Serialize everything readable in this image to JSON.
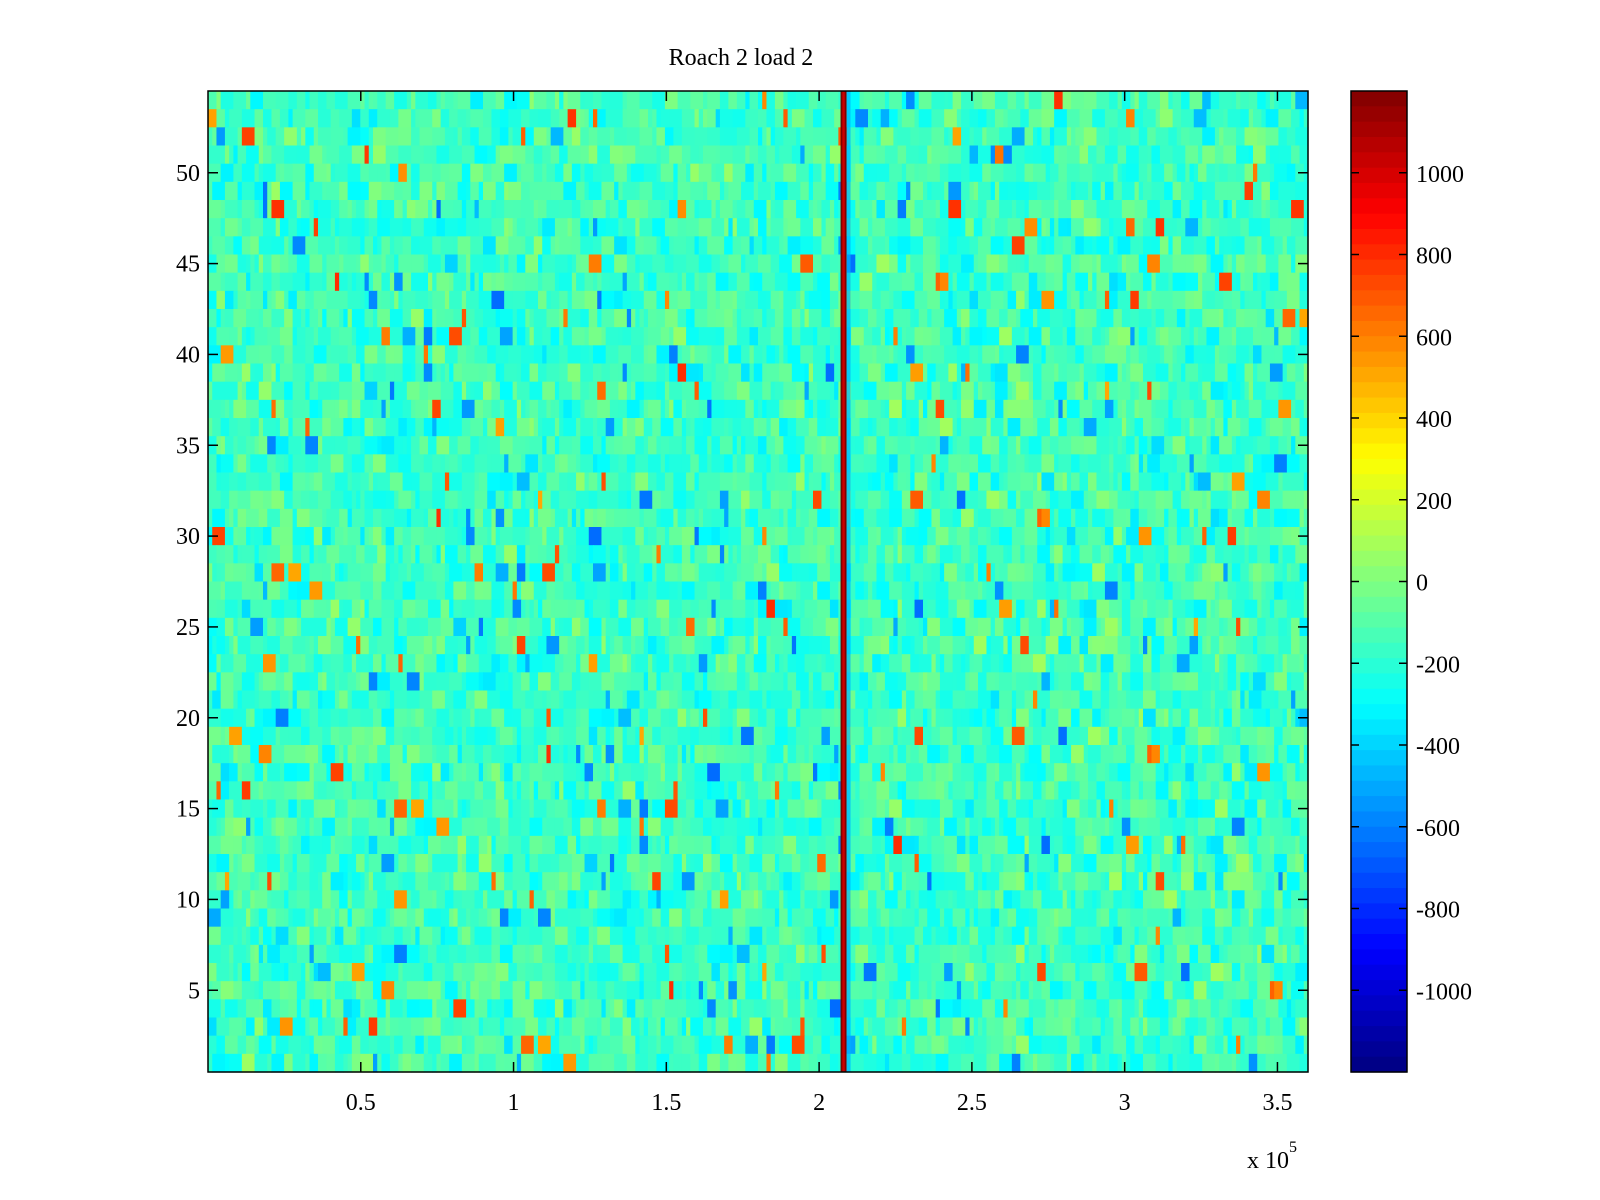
{
  "chart_data": {
    "type": "heatmap",
    "title": "Roach 2 load 2",
    "xlabel": "",
    "ylabel": "",
    "x_exponent_label": "x 10",
    "x_exponent_power": "5",
    "xlim": [
      0,
      3.6
    ],
    "ylim": [
      0.5,
      54.5
    ],
    "x_ticks": [
      0.5,
      1,
      1.5,
      2,
      2.5,
      3,
      3.5
    ],
    "x_tick_labels": [
      "0.5",
      "1",
      "1.5",
      "2",
      "2.5",
      "3",
      "3.5"
    ],
    "y_ticks": [
      5,
      10,
      15,
      20,
      25,
      30,
      35,
      40,
      45,
      50
    ],
    "y_tick_labels": [
      "5",
      "10",
      "15",
      "20",
      "25",
      "30",
      "35",
      "40",
      "45",
      "50"
    ],
    "rows": 54,
    "colormap": "jet",
    "color_range": [
      -1200,
      1200
    ],
    "background_level_range": [
      -400,
      300
    ],
    "spike": {
      "x": 2.08,
      "value": 1200
    },
    "colorbar": {
      "ticks": [
        1000,
        800,
        600,
        400,
        200,
        0,
        -200,
        -400,
        -600,
        -800,
        -1000
      ],
      "tick_labels": [
        "1000",
        "800",
        "600",
        "400",
        "200",
        "0",
        "-200",
        "-400",
        "-600",
        "-800",
        "-1000"
      ]
    },
    "grid": false,
    "legend": "none"
  }
}
